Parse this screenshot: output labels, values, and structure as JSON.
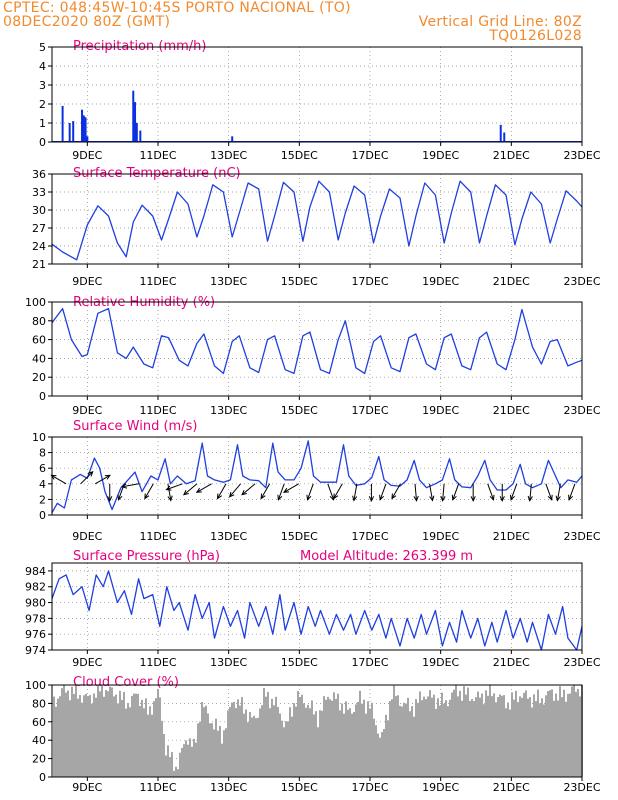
{
  "header": {
    "line1": "CPTEC:   048:45W-10:45S   PORTO NACIONAL (TO)",
    "line2": "08DEC2020 80Z (GMT)",
    "vgrid": "Vertical Grid Line: 80Z",
    "code": "TQ0126L028"
  },
  "colors": {
    "header": "#f28a2e",
    "title": "#e6007e",
    "line": "#1f3fe0",
    "bar": "#0a2fe0",
    "cloud": "#a6a6a6",
    "grid": "#888888"
  },
  "x_ticks": [
    "9DEC",
    "11DEC",
    "13DEC",
    "15DEC",
    "17DEC",
    "19DEC",
    "21DEC",
    "23DEC"
  ],
  "chart_data": [
    {
      "id": "precip",
      "type": "bar",
      "title": "Precipitation (mm/h)",
      "extra_title": "",
      "ylim": [
        0,
        5
      ],
      "yticks": [
        0,
        1,
        2,
        3,
        4,
        5
      ],
      "x_range": [
        "08DEC2020 08Z",
        "23DEC2020 08Z"
      ],
      "x_days": [
        0.3,
        0.5,
        0.6,
        0.85,
        0.9,
        0.95,
        1.0,
        2.3,
        2.35,
        2.4,
        2.5,
        5.1,
        12.7,
        12.8
      ],
      "values": [
        1.9,
        1.0,
        1.1,
        1.7,
        1.4,
        1.3,
        0.3,
        2.7,
        2.1,
        1.0,
        0.6,
        0.3,
        0.9,
        0.5
      ]
    },
    {
      "id": "temp",
      "type": "line",
      "title": "Surface Temperature (nC)",
      "extra_title": "",
      "ylim": [
        21,
        36
      ],
      "yticks": [
        21,
        24,
        27,
        30,
        33,
        36
      ],
      "x_range": [
        "08DEC2020 08Z",
        "23DEC2020 08Z"
      ],
      "daily": {
        "times": [
          0.0,
          0.3,
          0.7,
          1.0,
          1.3,
          1.6,
          1.85,
          2.1,
          2.3,
          2.55,
          2.85,
          3.1,
          3.3,
          3.55,
          3.85,
          4.1,
          4.3,
          4.55,
          4.85,
          5.1,
          5.3,
          5.55,
          5.85,
          6.1,
          6.3,
          6.55,
          6.85,
          7.1,
          7.3,
          7.55,
          7.85,
          8.1,
          8.3,
          8.55,
          8.85,
          9.1,
          9.3,
          9.55,
          9.85,
          10.1,
          10.3,
          10.55,
          10.85,
          11.1,
          11.3,
          11.55,
          11.85,
          12.1,
          12.3,
          12.55,
          12.85,
          13.1,
          13.3,
          13.55,
          13.85,
          14.1,
          14.3,
          14.55,
          14.85,
          15.0
        ],
        "values": [
          24.3,
          23.0,
          21.7,
          27.5,
          30.7,
          29.0,
          24.5,
          22.2,
          28.0,
          30.8,
          29.0,
          25.0,
          28.5,
          33.0,
          31.0,
          25.5,
          29.0,
          34.2,
          33.0,
          25.5,
          29.5,
          34.5,
          33.5,
          24.8,
          29.0,
          34.6,
          33.0,
          24.8,
          30.5,
          34.8,
          33.0,
          25.0,
          29.5,
          34.0,
          32.5,
          24.5,
          29.0,
          33.5,
          32.0,
          24.0,
          29.0,
          34.5,
          32.5,
          24.5,
          29.5,
          34.8,
          33.0,
          24.5,
          29.0,
          34.2,
          32.5,
          24.2,
          28.5,
          33.0,
          31.0,
          24.5,
          28.5,
          33.2,
          31.5,
          30.5
        ]
      }
    },
    {
      "id": "rh",
      "type": "line",
      "title": "Relative Humidity (%)",
      "extra_title": "",
      "ylim": [
        0,
        100
      ],
      "yticks": [
        0,
        20,
        40,
        60,
        80,
        100
      ],
      "x_range": [
        "08DEC2020 08Z",
        "23DEC2020 08Z"
      ],
      "daily": {
        "times": [
          0.0,
          0.3,
          0.55,
          0.85,
          1.0,
          1.3,
          1.6,
          1.85,
          2.1,
          2.3,
          2.6,
          2.85,
          3.1,
          3.3,
          3.6,
          3.85,
          4.1,
          4.3,
          4.6,
          4.85,
          5.1,
          5.3,
          5.6,
          5.85,
          6.1,
          6.3,
          6.6,
          6.85,
          7.1,
          7.3,
          7.6,
          7.85,
          8.1,
          8.3,
          8.6,
          8.85,
          9.1,
          9.3,
          9.6,
          9.85,
          10.1,
          10.3,
          10.6,
          10.85,
          11.1,
          11.3,
          11.6,
          11.85,
          12.1,
          12.3,
          12.6,
          12.85,
          13.1,
          13.3,
          13.6,
          13.85,
          14.1,
          14.3,
          14.6,
          14.85,
          15.0
        ],
        "values": [
          78,
          93,
          60,
          42,
          44,
          88,
          93,
          46,
          40,
          52,
          34,
          30,
          64,
          62,
          38,
          32,
          56,
          66,
          32,
          24,
          58,
          64,
          30,
          25,
          60,
          64,
          28,
          24,
          64,
          68,
          28,
          24,
          60,
          80,
          30,
          24,
          58,
          64,
          30,
          26,
          62,
          66,
          34,
          28,
          62,
          66,
          32,
          28,
          62,
          68,
          34,
          28,
          60,
          92,
          52,
          34,
          58,
          60,
          32,
          36,
          38
        ]
      }
    },
    {
      "id": "wind",
      "type": "line",
      "title": "Surface Wind (m/s)",
      "extra_title": "",
      "ylim": [
        0,
        10
      ],
      "yticks": [
        0,
        2,
        4,
        6,
        8,
        10
      ],
      "x_range": [
        "08DEC2020 08Z",
        "23DEC2020 08Z"
      ],
      "daily": {
        "times": [
          0.0,
          0.15,
          0.35,
          0.55,
          0.8,
          1.0,
          1.2,
          1.35,
          1.5,
          1.7,
          1.95,
          2.15,
          2.35,
          2.55,
          2.8,
          3.0,
          3.2,
          3.35,
          3.55,
          3.8,
          4.05,
          4.25,
          4.4,
          4.6,
          4.85,
          5.05,
          5.25,
          5.4,
          5.6,
          5.85,
          6.05,
          6.25,
          6.4,
          6.6,
          6.85,
          7.05,
          7.25,
          7.4,
          7.6,
          7.85,
          8.05,
          8.25,
          8.4,
          8.6,
          8.85,
          9.05,
          9.25,
          9.4,
          9.6,
          9.85,
          10.05,
          10.25,
          10.4,
          10.6,
          10.85,
          11.05,
          11.25,
          11.4,
          11.6,
          11.85,
          12.05,
          12.25,
          12.4,
          12.6,
          12.85,
          13.05,
          13.25,
          13.4,
          13.6,
          13.85,
          14.05,
          14.25,
          14.4,
          14.6,
          14.85,
          15.0
        ],
        "values": [
          0.3,
          1.5,
          0.9,
          4.5,
          5.2,
          4.7,
          7.3,
          6.0,
          3.0,
          0.7,
          3.5,
          4.5,
          5.5,
          3.0,
          5.0,
          4.5,
          7.2,
          4.0,
          5.0,
          4.0,
          4.4,
          9.2,
          5.0,
          4.5,
          4.2,
          4.5,
          9.0,
          5.0,
          4.5,
          4.4,
          3.5,
          9.2,
          5.5,
          4.5,
          4.5,
          6.0,
          9.5,
          5.0,
          4.2,
          4.2,
          4.2,
          9.0,
          5.0,
          3.8,
          4.0,
          4.8,
          7.5,
          4.5,
          3.8,
          3.7,
          4.5,
          7.0,
          4.5,
          3.5,
          4.0,
          4.5,
          7.2,
          4.5,
          3.6,
          3.5,
          5.0,
          7.0,
          4.5,
          3.2,
          3.2,
          4.0,
          6.5,
          4.0,
          3.5,
          4.0,
          7.0,
          5.0,
          3.5,
          4.5,
          4.2,
          5.0
        ]
      },
      "vectors_deg_to": [
        300,
        45,
        60,
        180,
        200,
        260,
        210,
        170,
        250,
        230,
        240,
        210,
        220,
        230,
        210,
        200,
        240,
        200,
        160,
        210,
        190,
        180,
        200,
        210,
        175,
        170,
        185,
        200,
        180,
        160,
        180,
        200,
        185,
        160,
        190,
        200
      ]
    },
    {
      "id": "pres",
      "type": "line",
      "title": "Surface Pressure (hPa)",
      "extra_title": "Model Altitude: 263.399 m",
      "ylim": [
        974,
        985
      ],
      "yticks": [
        974,
        976,
        978,
        980,
        982,
        984
      ],
      "x_range": [
        "08DEC2020 08Z",
        "23DEC2020 08Z"
      ],
      "daily": {
        "times": [
          0.0,
          0.2,
          0.4,
          0.6,
          0.85,
          1.05,
          1.25,
          1.45,
          1.6,
          1.85,
          2.05,
          2.25,
          2.45,
          2.6,
          2.85,
          3.05,
          3.25,
          3.45,
          3.6,
          3.85,
          4.05,
          4.25,
          4.45,
          4.6,
          4.85,
          5.05,
          5.25,
          5.45,
          5.6,
          5.85,
          6.05,
          6.25,
          6.45,
          6.6,
          6.85,
          7.05,
          7.25,
          7.45,
          7.6,
          7.85,
          8.05,
          8.25,
          8.45,
          8.6,
          8.85,
          9.05,
          9.25,
          9.45,
          9.6,
          9.85,
          10.05,
          10.25,
          10.45,
          10.6,
          10.85,
          11.05,
          11.25,
          11.45,
          11.6,
          11.85,
          12.05,
          12.25,
          12.45,
          12.6,
          12.85,
          13.05,
          13.25,
          13.45,
          13.6,
          13.85,
          14.05,
          14.25,
          14.45,
          14.6,
          14.85,
          15.0
        ],
        "values": [
          980.5,
          983.0,
          983.5,
          981.0,
          982.0,
          979.0,
          983.5,
          982.0,
          984.0,
          980.0,
          981.5,
          978.5,
          983.0,
          980.5,
          981.0,
          977.0,
          982.0,
          979.0,
          980.0,
          976.5,
          981.0,
          978.0,
          980.0,
          975.5,
          979.5,
          977.0,
          979.0,
          975.5,
          980.0,
          977.0,
          979.5,
          976.0,
          981.0,
          976.5,
          980.0,
          976.0,
          979.5,
          977.0,
          979.0,
          976.0,
          978.5,
          976.5,
          978.5,
          976.0,
          979.0,
          976.5,
          978.5,
          975.5,
          978.0,
          974.5,
          978.0,
          975.5,
          978.5,
          976.0,
          979.0,
          974.5,
          977.5,
          975.0,
          979.0,
          975.5,
          978.0,
          974.5,
          977.5,
          975.0,
          979.0,
          975.5,
          978.0,
          975.0,
          977.5,
          974.0,
          978.5,
          976.0,
          979.5,
          975.5,
          974.0,
          977.0
        ]
      }
    },
    {
      "id": "cloud",
      "type": "area",
      "title": "Cloud Cover (%)",
      "extra_title": "",
      "ylim": [
        0,
        100
      ],
      "yticks": [
        0,
        20,
        40,
        60,
        80,
        100
      ],
      "x_range": [
        "08DEC2020 08Z",
        "23DEC2020 08Z"
      ],
      "daily": {
        "times": [
          0.0,
          0.3,
          0.6,
          1.0,
          1.4,
          1.8,
          2.1,
          2.4,
          2.7,
          3.0,
          3.2,
          3.5,
          3.8,
          4.0,
          4.2,
          4.5,
          4.8,
          5.1,
          5.4,
          5.7,
          6.0,
          6.3,
          6.6,
          6.9,
          7.2,
          7.5,
          7.8,
          8.1,
          8.4,
          8.7,
          9.0,
          9.3,
          9.6,
          9.9,
          10.2,
          10.5,
          10.8,
          11.1,
          11.4,
          11.7,
          12.0,
          12.3,
          12.6,
          12.9,
          13.2,
          13.5,
          13.8,
          14.1,
          14.4,
          14.7,
          15.0
        ],
        "values": [
          80,
          95,
          92,
          85,
          97,
          90,
          80,
          90,
          70,
          92,
          30,
          10,
          45,
          30,
          80,
          60,
          45,
          85,
          75,
          60,
          90,
          80,
          55,
          88,
          80,
          65,
          90,
          82,
          70,
          85,
          75,
          40,
          92,
          80,
          75,
          90,
          85,
          80,
          95,
          90,
          85,
          92,
          88,
          80,
          90,
          86,
          84,
          92,
          88,
          94,
          98
        ]
      }
    }
  ]
}
